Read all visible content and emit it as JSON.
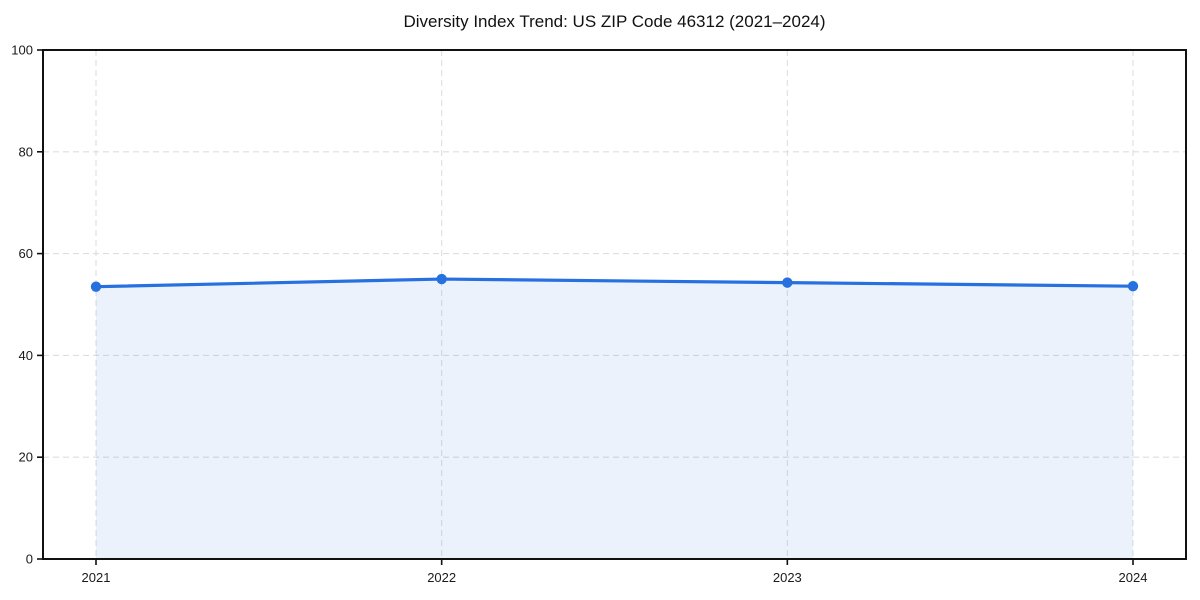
{
  "page": {
    "title": "Diversity Index Trend: US ZIP Code 46312 (2021–2024)"
  },
  "chart_data": {
    "type": "area",
    "title": "Diversity Index Trend: US ZIP Code 46312 (2021–2024)",
    "categories": [
      "2021",
      "2022",
      "2023",
      "2024"
    ],
    "series": [
      {
        "name": "Diversity Index",
        "values": [
          53.5,
          55.0,
          54.3,
          53.6
        ]
      }
    ],
    "xlabel": "",
    "ylabel": "",
    "ylim": [
      0,
      100
    ],
    "yticks": [
      0,
      20,
      40,
      60,
      80,
      100
    ],
    "grid": true,
    "grid_style": "dashed",
    "legend_position": "none",
    "colors": {
      "line": "#2670e0",
      "marker": "#2670e0",
      "fill": "rgba(38, 112, 224, 0.09)",
      "gridline": "#dedede",
      "spine": "#111111",
      "tick_text": "#1a1a1a",
      "background": "#ffffff"
    }
  }
}
